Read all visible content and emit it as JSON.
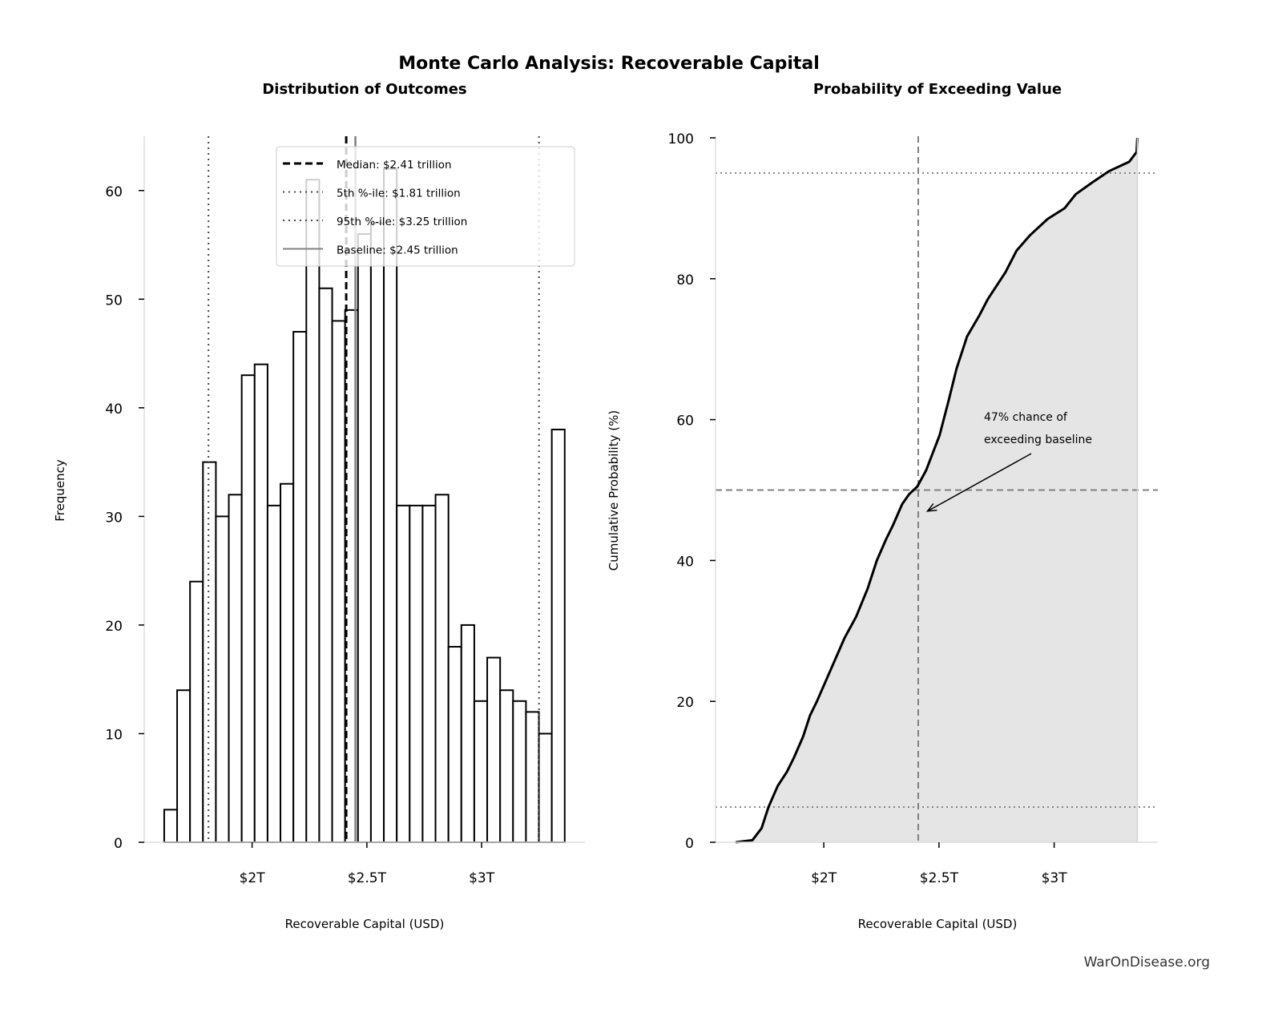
{
  "title": "Monte Carlo Analysis: Recoverable Capital",
  "watermark": "WarOnDisease.org",
  "chart_data": [
    {
      "type": "bar",
      "title": "Distribution of Outcomes",
      "xlabel": "Recoverable Capital (USD)",
      "ylabel": "Frequency",
      "xlim": [
        1.53,
        3.45
      ],
      "ylim": [
        0,
        65
      ],
      "x_unit": "trillion USD",
      "xticks": [
        {
          "value": 2,
          "label": "$2T"
        },
        {
          "value": 2.5,
          "label": "$2.5T"
        },
        {
          "value": 3,
          "label": "$3T"
        }
      ],
      "yticks": [
        0,
        10,
        20,
        30,
        40,
        50,
        60
      ],
      "bin_start": 1.617,
      "bin_end": 3.362,
      "values": [
        3,
        14,
        24,
        35,
        30,
        32,
        43,
        44,
        31,
        33,
        47,
        61,
        51,
        48,
        49,
        56,
        57,
        62,
        31,
        31,
        31,
        32,
        18,
        20,
        13,
        17,
        14,
        13,
        12,
        10,
        38
      ],
      "bar_fill": "#ffffff",
      "bar_edge": "#000000",
      "reference_lines": [
        {
          "label": "Median: $2.41 trillion",
          "value": 2.41,
          "style": "dashed",
          "color": "#000000"
        },
        {
          "label": "5th %-ile: $1.81 trillion",
          "value": 1.81,
          "style": "dotted",
          "color": "#444444"
        },
        {
          "label": "95th %-ile: $3.25 trillion",
          "value": 3.25,
          "style": "dotted",
          "color": "#444444"
        },
        {
          "label": "Baseline: $2.45 trillion",
          "value": 2.45,
          "style": "solid",
          "color": "#808080"
        }
      ],
      "legend_position": "top-right",
      "grid": false
    },
    {
      "type": "line",
      "title": "Probability of Exceeding Value",
      "xlabel": "Recoverable Capital (USD)",
      "ylabel": "Cumulative Probability (%)",
      "xlim": [
        1.53,
        3.45
      ],
      "ylim": [
        0,
        100
      ],
      "xticks": [
        {
          "value": 2,
          "label": "$2T"
        },
        {
          "value": 2.5,
          "label": "$2.5T"
        },
        {
          "value": 3,
          "label": "$3T"
        }
      ],
      "yticks": [
        0,
        20,
        40,
        60,
        80,
        100
      ],
      "x": [
        1.617,
        1.69,
        1.73,
        1.76,
        1.8,
        1.84,
        1.87,
        1.91,
        1.94,
        1.97,
        2.01,
        2.05,
        2.09,
        2.14,
        2.19,
        2.23,
        2.27,
        2.3,
        2.34,
        2.37,
        2.406,
        2.444,
        2.503,
        2.542,
        2.576,
        2.622,
        2.677,
        2.712,
        2.788,
        2.837,
        2.896,
        2.972,
        3.045,
        3.094,
        3.167,
        3.24,
        3.326,
        3.358,
        3.361
      ],
      "y": [
        0,
        0.3,
        2,
        5,
        8,
        10,
        12,
        15,
        18,
        20,
        23,
        26,
        29,
        32,
        36,
        40,
        43,
        45,
        48,
        49.4,
        50.5,
        52.8,
        57.8,
        62.7,
        67.2,
        71.8,
        74.9,
        77.1,
        80.9,
        84,
        86.2,
        88.5,
        90,
        92,
        93.7,
        95.3,
        96.6,
        98,
        100
      ],
      "fill_color": "#e5e5e5",
      "line_color": "#000000",
      "reference_lines": [
        {
          "axis": "x",
          "value": 2.41,
          "style": "dashed"
        },
        {
          "axis": "y",
          "value": 50,
          "style": "dashed"
        },
        {
          "axis": "y",
          "value": 5,
          "style": "dotted"
        },
        {
          "axis": "y",
          "value": 95,
          "style": "dotted"
        }
      ],
      "annotation": {
        "text_line1": "47% chance of",
        "text_line2": "exceeding baseline",
        "arrow_to": [
          2.45,
          47
        ]
      },
      "grid": false
    }
  ]
}
